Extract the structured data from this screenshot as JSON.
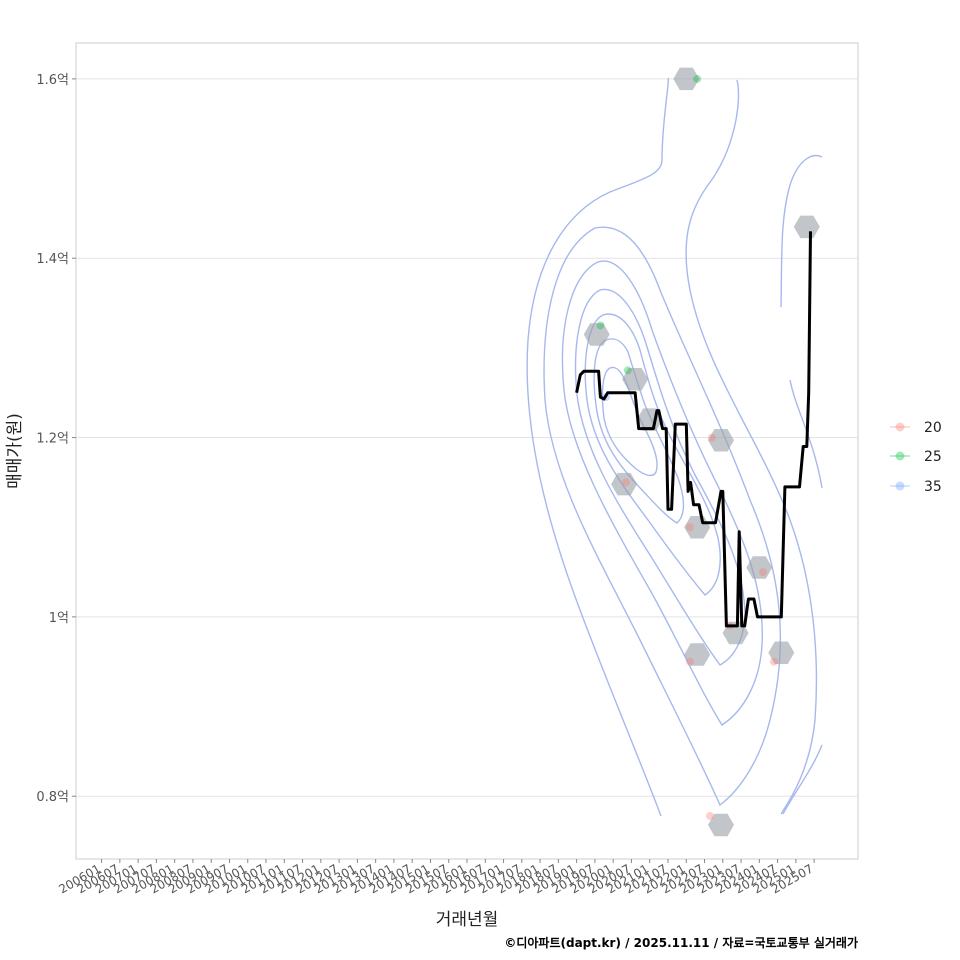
{
  "chart_data": {
    "type": "line",
    "title": "",
    "xlabel": "거래년월",
    "ylabel": "매매가(원)",
    "caption": "©디아파트(dapt.kr) / 2025.11.11 / 자료=국토교통부 실거래가",
    "x_ticks": [
      "200601",
      "200607",
      "200701",
      "200707",
      "200801",
      "200807",
      "200901",
      "200907",
      "201001",
      "201007",
      "201101",
      "201107",
      "201201",
      "201207",
      "201301",
      "201307",
      "201401",
      "201407",
      "201501",
      "201507",
      "201601",
      "201607",
      "201701",
      "201707",
      "201801",
      "201807",
      "201901",
      "201907",
      "202001",
      "202007",
      "202101",
      "202107",
      "202201",
      "202207",
      "202301",
      "202307",
      "202401",
      "202407",
      "202501",
      "202507"
    ],
    "y_ticks": [
      {
        "value": 0.8,
        "label": "0.8억"
      },
      {
        "value": 1.0,
        "label": "1억"
      },
      {
        "value": 1.2,
        "label": "1.2억"
      },
      {
        "value": 1.4,
        "label": "1.4억"
      },
      {
        "value": 1.6,
        "label": "1.6억"
      }
    ],
    "x_range_years": [
      2005.3,
      2026.7
    ],
    "ylim": [
      0.73,
      1.64
    ],
    "legend": {
      "position": "right",
      "entries": [
        {
          "label": "20",
          "color": "#F8766D"
        },
        {
          "label": "25",
          "color": "#00BA38"
        },
        {
          "label": "35",
          "color": "#619CFF"
        }
      ]
    },
    "points": [
      {
        "t": 2019.65,
        "price": 1.325,
        "group": "25"
      },
      {
        "t": 2020.4,
        "price": 1.275,
        "group": "25"
      },
      {
        "t": 2022.3,
        "price": 1.6,
        "group": "25"
      },
      {
        "t": 2020.35,
        "price": 1.15,
        "group": "20"
      },
      {
        "t": 2022.1,
        "price": 1.1,
        "group": "20"
      },
      {
        "t": 2022.7,
        "price": 1.2,
        "group": "20"
      },
      {
        "t": 2022.1,
        "price": 0.95,
        "group": "20"
      },
      {
        "t": 2022.65,
        "price": 0.778,
        "group": "20"
      },
      {
        "t": 2023.2,
        "price": 0.99,
        "group": "20"
      },
      {
        "t": 2024.1,
        "price": 1.05,
        "group": "20"
      },
      {
        "t": 2024.4,
        "price": 0.95,
        "group": "20"
      },
      {
        "t": 2019.8,
        "price": 1.245,
        "group": "35"
      }
    ],
    "hexbins": [
      {
        "t": 2019.55,
        "price": 1.315
      },
      {
        "t": 2020.3,
        "price": 1.148
      },
      {
        "t": 2020.6,
        "price": 1.265
      },
      {
        "t": 2021.0,
        "price": 1.22
      },
      {
        "t": 2022.0,
        "price": 1.6
      },
      {
        "t": 2022.3,
        "price": 1.1
      },
      {
        "t": 2022.3,
        "price": 0.958
      },
      {
        "t": 2022.95,
        "price": 1.197
      },
      {
        "t": 2022.95,
        "price": 0.768
      },
      {
        "t": 2023.35,
        "price": 0.982
      },
      {
        "t": 2024.0,
        "price": 1.055
      },
      {
        "t": 2024.6,
        "price": 0.96
      },
      {
        "t": 2025.3,
        "price": 1.435
      }
    ],
    "series": [
      {
        "name": "moving-average",
        "color": "#000000",
        "points": [
          [
            2019.0,
            1.25
          ],
          [
            2019.1,
            1.27
          ],
          [
            2019.2,
            1.274
          ],
          [
            2019.5,
            1.274
          ],
          [
            2019.6,
            1.274
          ],
          [
            2019.65,
            1.245
          ],
          [
            2019.75,
            1.243
          ],
          [
            2019.85,
            1.25
          ],
          [
            2020.2,
            1.25
          ],
          [
            2020.6,
            1.25
          ],
          [
            2020.7,
            1.21
          ],
          [
            2021.1,
            1.21
          ],
          [
            2021.2,
            1.23
          ],
          [
            2021.25,
            1.23
          ],
          [
            2021.35,
            1.21
          ],
          [
            2021.45,
            1.21
          ],
          [
            2021.5,
            1.12
          ],
          [
            2021.6,
            1.12
          ],
          [
            2021.7,
            1.215
          ],
          [
            2022.0,
            1.215
          ],
          [
            2022.05,
            1.14
          ],
          [
            2022.12,
            1.15
          ],
          [
            2022.2,
            1.125
          ],
          [
            2022.35,
            1.125
          ],
          [
            2022.45,
            1.105
          ],
          [
            2022.6,
            1.105
          ],
          [
            2022.8,
            1.105
          ],
          [
            2022.95,
            1.14
          ],
          [
            2023.0,
            1.14
          ],
          [
            2023.1,
            0.99
          ],
          [
            2023.4,
            0.99
          ],
          [
            2023.45,
            1.095
          ],
          [
            2023.52,
            0.99
          ],
          [
            2023.6,
            0.99
          ],
          [
            2023.7,
            1.02
          ],
          [
            2023.85,
            1.02
          ],
          [
            2023.95,
            1.0
          ],
          [
            2024.1,
            1.0
          ],
          [
            2024.6,
            1.0
          ],
          [
            2024.7,
            1.145
          ],
          [
            2024.8,
            1.145
          ],
          [
            2025.1,
            1.145
          ],
          [
            2025.2,
            1.19
          ],
          [
            2025.3,
            1.19
          ],
          [
            2025.35,
            1.25
          ],
          [
            2025.4,
            1.43
          ]
        ]
      }
    ],
    "density_contours": {
      "center": {
        "t": 2020.6,
        "price": 1.24
      },
      "levels": 7,
      "color": "#A7B8EE"
    }
  }
}
